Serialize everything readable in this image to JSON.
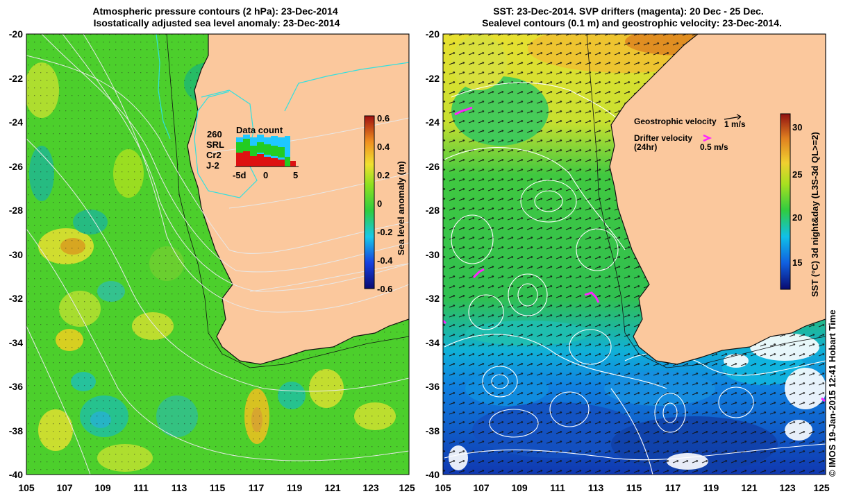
{
  "left_panel": {
    "title_line1": "Atmospheric pressure contours (2 hPa): 23-Dec-2014",
    "title_line2": "Isostatically adjusted sea level anomaly: 23-Dec-2014",
    "colorbar": {
      "label": "Sea level anomaly (m)",
      "ticks": [
        "0.6",
        "0.4",
        "0.2",
        "0",
        "-0.2",
        "-0.4",
        "-0.6"
      ]
    },
    "inset": {
      "title": "Data count",
      "count_label": "260",
      "series": [
        "SRL",
        "Cr2",
        "J-2"
      ],
      "series_colors": [
        "#1ec8ff",
        "#22cc22",
        "#dd1111"
      ],
      "x_ticks": [
        "-5d",
        "0",
        "5"
      ]
    }
  },
  "right_panel": {
    "title_line1": "SST: 23-Dec-2014. SVP drifters (magenta): 20 Dec - 25 Dec.",
    "title_line2": "Sealevel contours (0.1 m) and geostrophic velocity: 23-Dec-2014.",
    "legend": {
      "geo_label": "Geostrophic velocity",
      "geo_scale": "1 m/s",
      "drifter_label": "Drifter velocity",
      "drifter_sub": "(24hr)",
      "drifter_scale": "0.5 m/s"
    },
    "colorbar": {
      "label": "SST (°C) 3d night&day (L3S-3d QL>=2)",
      "ticks": [
        "30",
        "25",
        "20",
        "15"
      ]
    }
  },
  "axes": {
    "y_ticks": [
      "-20",
      "-22",
      "-24",
      "-26",
      "-28",
      "-30",
      "-32",
      "-34",
      "-36",
      "-38",
      "-40"
    ],
    "x_ticks": [
      "105",
      "107",
      "109",
      "111",
      "113",
      "115",
      "117",
      "119",
      "121",
      "123",
      "125"
    ]
  },
  "credit": "© IMOS 19-Jan-2015 12:41 Hobart Time",
  "colors": {
    "land": "#fbc89d",
    "sla_green": "#4ccf2c",
    "drifter": "#ff22ff",
    "contour": "#ffffff"
  }
}
